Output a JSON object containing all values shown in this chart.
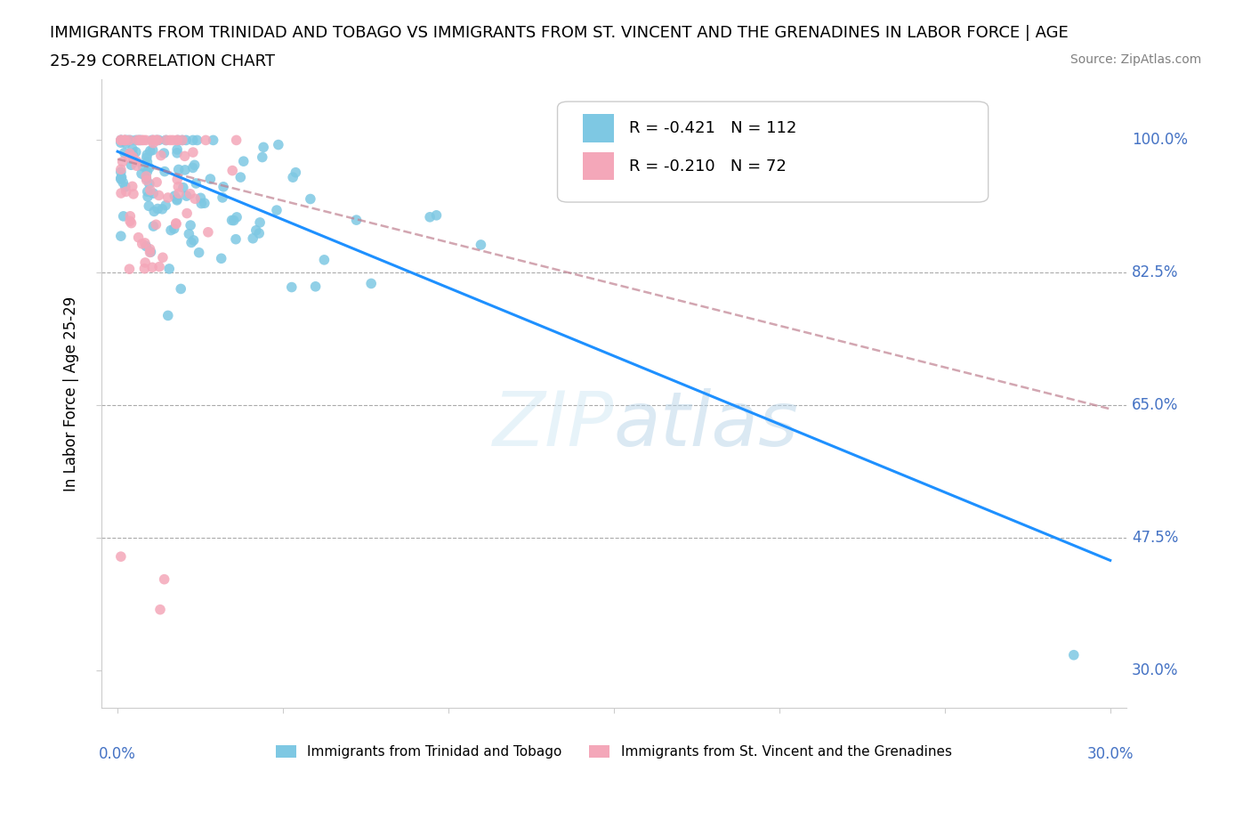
{
  "title_line1": "IMMIGRANTS FROM TRINIDAD AND TOBAGO VS IMMIGRANTS FROM ST. VINCENT AND THE GRENADINES IN LABOR FORCE | AGE",
  "title_line2": "25-29 CORRELATION CHART",
  "source": "Source: ZipAtlas.com",
  "ylabel": "In Labor Force | Age 25-29",
  "yticks": [
    0.3,
    0.475,
    0.65,
    0.825,
    1.0
  ],
  "ytick_labels": [
    "30.0%",
    "47.5%",
    "65.0%",
    "82.5%",
    "100.0%"
  ],
  "xlim": [
    0.0,
    0.3
  ],
  "ylim": [
    0.25,
    1.08
  ],
  "r_tt": -0.421,
  "n_tt": 112,
  "r_sv": -0.21,
  "n_sv": 72,
  "color_tt": "#7EC8E3",
  "color_sv": "#F4A7B9",
  "trendline_tt_color": "#1E90FF",
  "trendline_sv_color": "#C08090",
  "legend_tt": "Immigrants from Trinidad and Tobago",
  "legend_sv": "Immigrants from St. Vincent and the Grenadines"
}
